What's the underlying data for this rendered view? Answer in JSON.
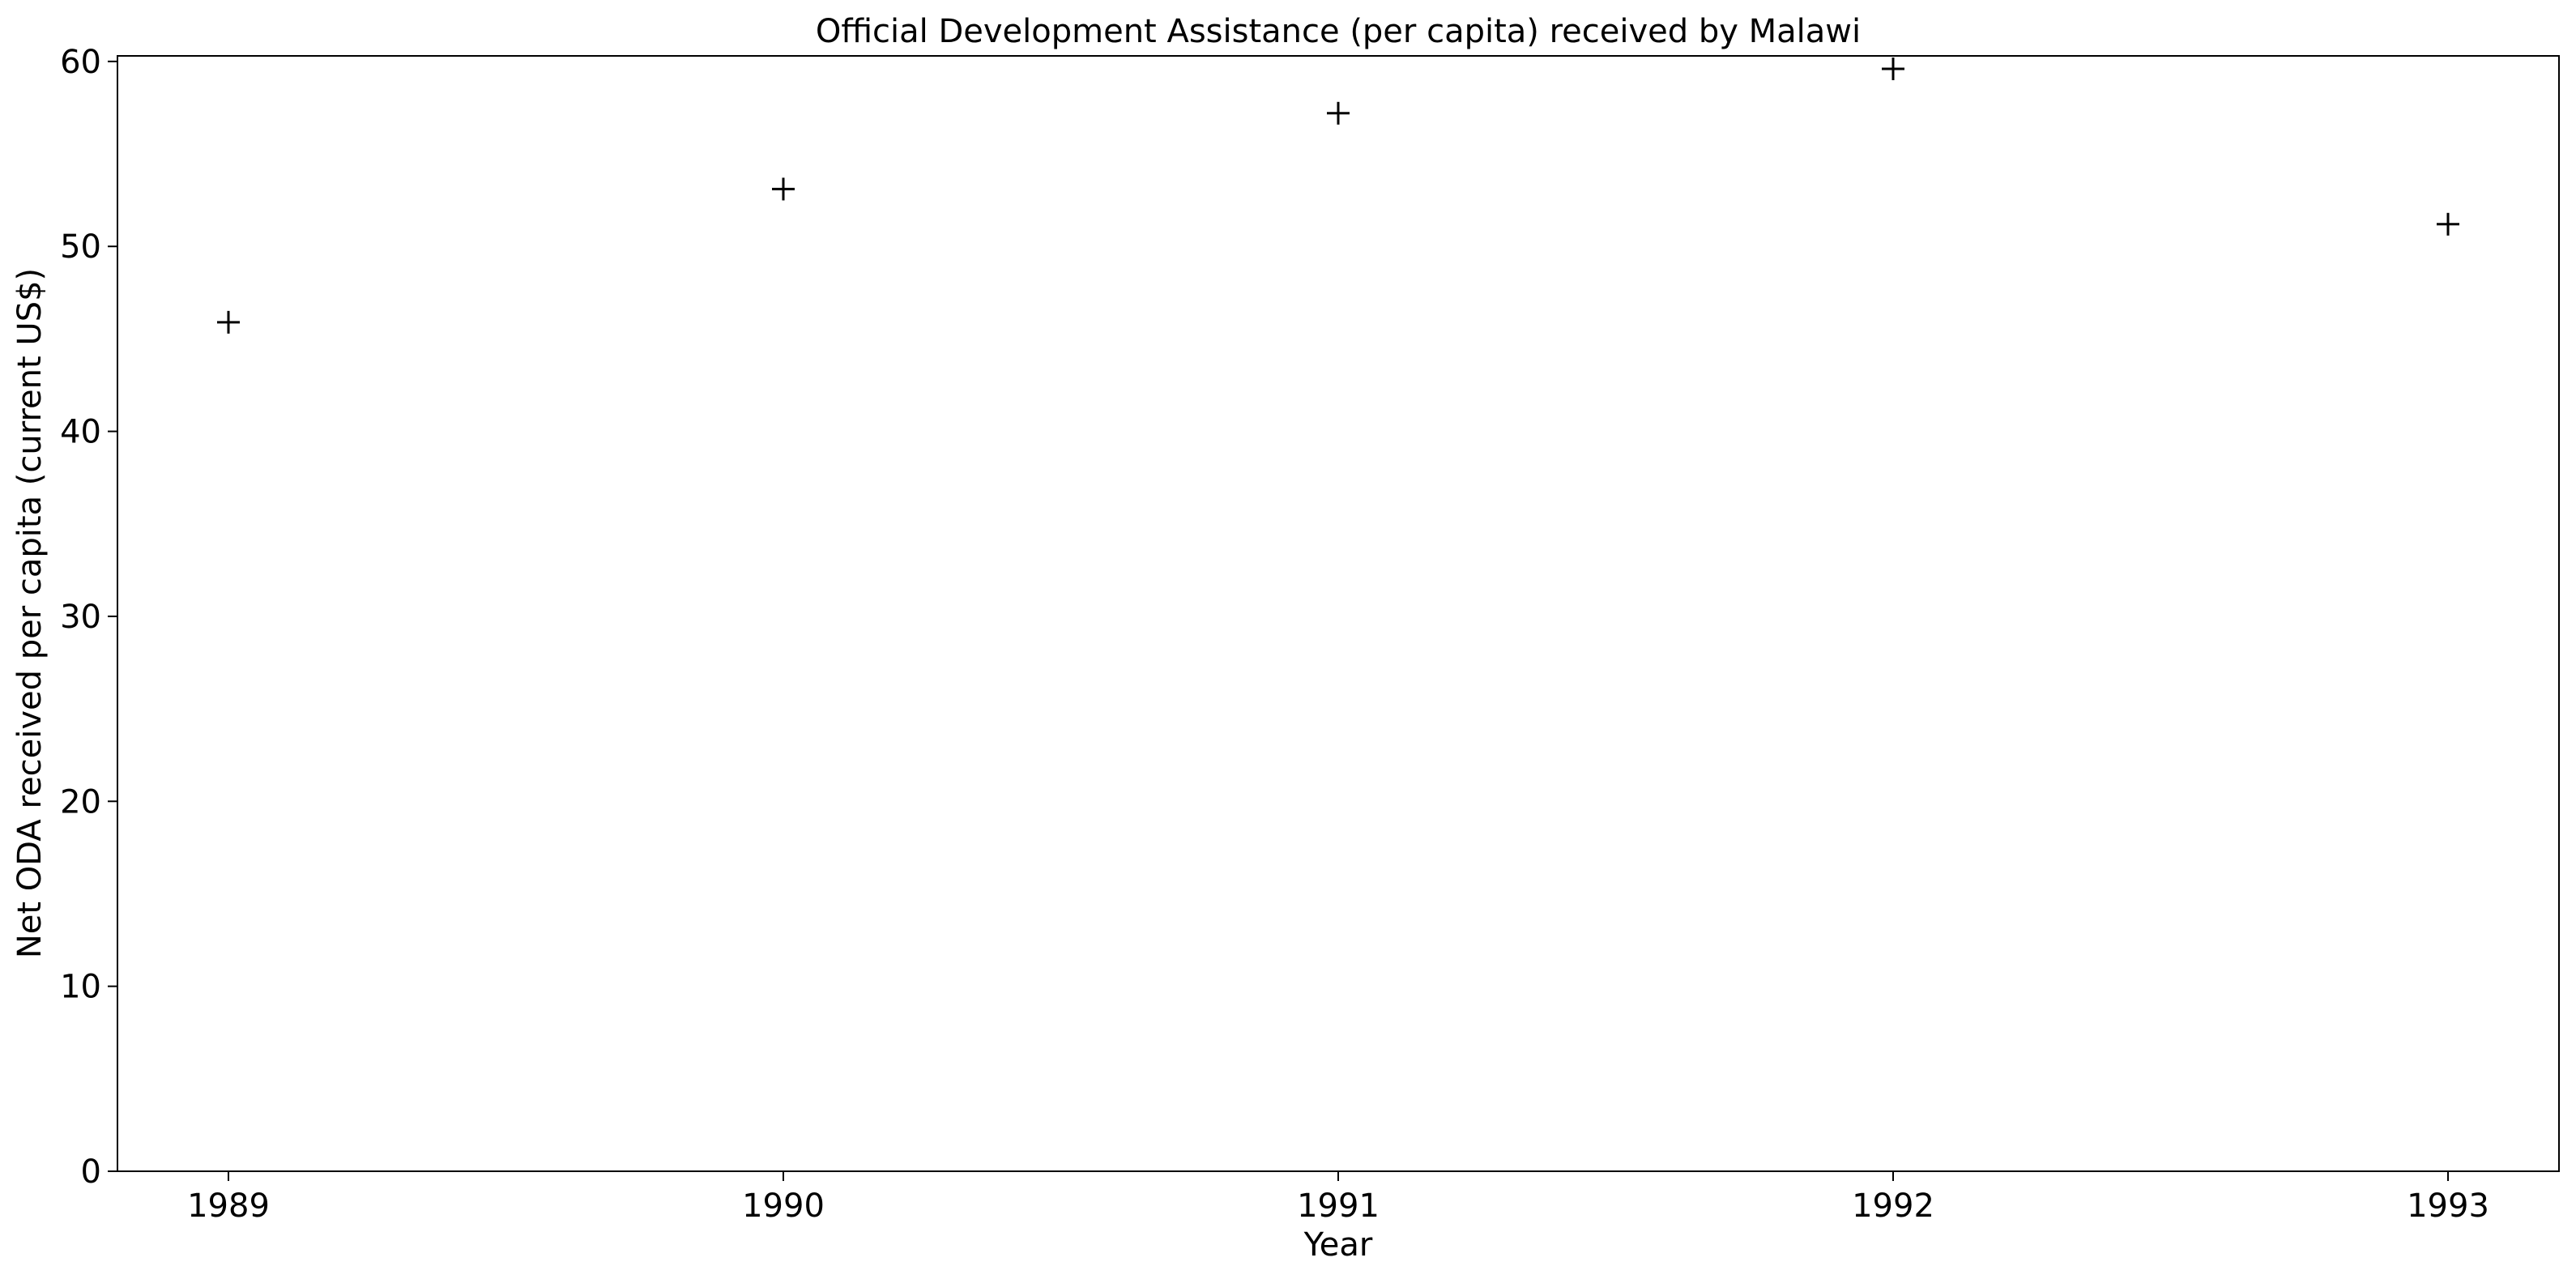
{
  "chart_data": {
    "type": "scatter",
    "title": "Official Development Assistance (per capita) received by Malawi",
    "xlabel": "Year",
    "ylabel": "Net ODA received per capita (current US$)",
    "x": [
      1989,
      1990,
      1991,
      1992,
      1993
    ],
    "series": [
      {
        "values": [
          45.9,
          53.1,
          57.2,
          59.6,
          51.2
        ]
      }
    ],
    "marker": "plus",
    "color": "#000000",
    "xlim": [
      1988.8,
      1993.2
    ],
    "ylim": [
      0,
      60.3
    ],
    "x_ticks": [
      1989,
      1990,
      1991,
      1992,
      1993
    ],
    "y_ticks": [
      0,
      10,
      20,
      30,
      40,
      50,
      60
    ],
    "grid": false,
    "legend": "none"
  }
}
